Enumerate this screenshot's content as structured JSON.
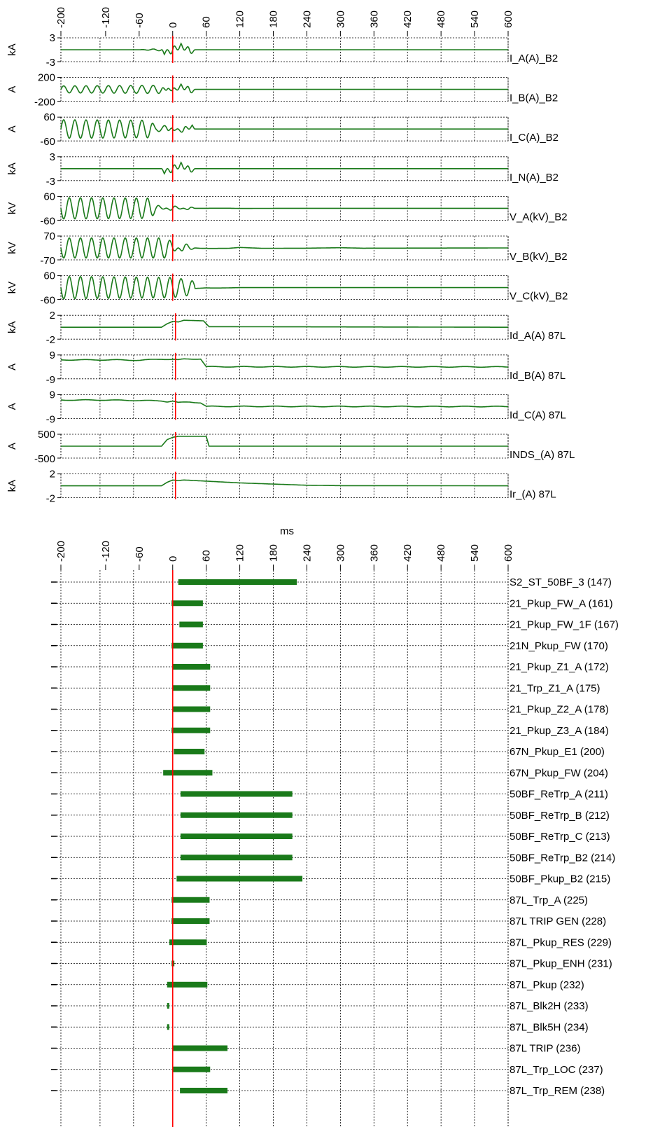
{
  "chart_data": [
    {
      "type": "line",
      "title": "",
      "xlabel": "ms",
      "xlim": [
        -200,
        600
      ],
      "x_ticks": [
        -200,
        -120,
        -60,
        0,
        60,
        120,
        180,
        240,
        300,
        360,
        420,
        480,
        540,
        600
      ],
      "trigger_ms": 0,
      "trigger_color": "#ff0000",
      "trace_color": "#1a7a1a",
      "series": [
        {
          "name": "I_A(A)_B2",
          "unit": "kA",
          "ylim": [
            -3,
            3
          ],
          "ytick_labels": [
            "3",
            "-3"
          ],
          "shape": [
            [
              -200,
              0
            ],
            [
              -60,
              0
            ],
            [
              -20,
              0.3
            ],
            [
              -15,
              -1.2
            ],
            [
              0,
              1.9
            ],
            [
              15,
              -1.6
            ],
            [
              30,
              1.6
            ],
            [
              40,
              0
            ],
            [
              600,
              0
            ]
          ],
          "ripple": 0.05
        },
        {
          "name": "I_B(A)_B2",
          "unit": "A",
          "ylim": [
            -200,
            200
          ],
          "ytick_labels": [
            "200",
            "-200"
          ],
          "shape": [
            [
              -200,
              60
            ],
            [
              -20,
              70
            ],
            [
              -10,
              -50
            ],
            [
              0,
              60
            ],
            [
              15,
              -90
            ],
            [
              30,
              100
            ],
            [
              40,
              0
            ],
            [
              600,
              0
            ]
          ],
          "ripple": 0
        },
        {
          "name": "I_C(A)_B2",
          "unit": "A",
          "ylim": [
            -60,
            60
          ],
          "ytick_labels": [
            "60",
            "-60"
          ],
          "shape": [
            [
              -200,
              48
            ],
            [
              -40,
              45
            ],
            [
              -30,
              10
            ],
            [
              -10,
              20
            ],
            [
              0,
              -15
            ],
            [
              20,
              25
            ],
            [
              35,
              -20
            ],
            [
              40,
              0
            ],
            [
              600,
              0
            ]
          ],
          "ripple": 0
        },
        {
          "name": "I_N(A)_B2",
          "unit": "kA",
          "ylim": [
            -3,
            3
          ],
          "ytick_labels": [
            "3",
            "-3"
          ],
          "shape": [
            [
              -200,
              0
            ],
            [
              -20,
              0
            ],
            [
              -15,
              -1.3
            ],
            [
              0,
              1.9
            ],
            [
              15,
              -1.6
            ],
            [
              30,
              1.5
            ],
            [
              40,
              0
            ],
            [
              600,
              0
            ]
          ],
          "ripple": 0
        },
        {
          "name": "V_A(kV)_B2",
          "unit": "kV",
          "ylim": [
            -60,
            60
          ],
          "ytick_labels": [
            "60",
            "-60"
          ],
          "shape": [
            [
              -200,
              -55
            ],
            [
              -40,
              -52
            ],
            [
              -30,
              -20
            ],
            [
              0,
              15
            ],
            [
              30,
              -10
            ],
            [
              40,
              0
            ],
            [
              100,
              3
            ],
            [
              120,
              -5
            ],
            [
              200,
              0
            ],
            [
              600,
              0
            ]
          ],
          "ripple": 0
        },
        {
          "name": "V_B(kV)_B2",
          "unit": "kV",
          "ylim": [
            -70,
            70
          ],
          "ytick_labels": [
            "70",
            "-70"
          ],
          "shape": [
            [
              -200,
              -60
            ],
            [
              -10,
              -60
            ],
            [
              20,
              30
            ],
            [
              50,
              -15
            ],
            [
              70,
              -20
            ],
            [
              100,
              -15
            ],
            [
              120,
              20
            ],
            [
              160,
              -15
            ],
            [
              240,
              -10
            ],
            [
              300,
              10
            ],
            [
              340,
              -10
            ],
            [
              600,
              0
            ]
          ],
          "ripple": 0
        },
        {
          "name": "V_C(kV)_B2",
          "unit": "kV",
          "ylim": [
            -60,
            60
          ],
          "ytick_labels": [
            "60",
            "-60"
          ],
          "shape": [
            [
              -200,
              -58
            ],
            [
              0,
              -52
            ],
            [
              30,
              -40
            ],
            [
              60,
              -10
            ],
            [
              70,
              -15
            ],
            [
              90,
              -13
            ],
            [
              120,
              0
            ],
            [
              200,
              0
            ],
            [
              600,
              0
            ]
          ],
          "ripple": 0
        },
        {
          "name": "Id_A(A) 87L",
          "unit": "kA",
          "ylim": [
            -2,
            2
          ],
          "ytick_labels": [
            "2",
            "-2"
          ],
          "shape": [
            [
              -200,
              0
            ],
            [
              -20,
              0
            ],
            [
              -10,
              0.6
            ],
            [
              0,
              1.0
            ],
            [
              10,
              0.9
            ],
            [
              20,
              1.2
            ],
            [
              55,
              1.1
            ],
            [
              65,
              0.1
            ],
            [
              600,
              0
            ]
          ],
          "ripple": 0
        },
        {
          "name": "Id_B(A) 87L",
          "unit": "A",
          "ylim": [
            -9,
            9
          ],
          "ytick_labels": [
            "9",
            "-9"
          ],
          "shape": [
            [
              -200,
              5.4
            ],
            [
              -100,
              5.4
            ],
            [
              -60,
              5.1
            ],
            [
              -20,
              6.0
            ],
            [
              0,
              5.8
            ],
            [
              10,
              5.4
            ],
            [
              20,
              6.0
            ],
            [
              50,
              6.2
            ],
            [
              60,
              0.1
            ],
            [
              600,
              0
            ]
          ],
          "ripple": 0.3
        },
        {
          "name": "Id_C(A) 87L",
          "unit": "A",
          "ylim": [
            -9,
            9
          ],
          "ytick_labels": [
            "9",
            "-9"
          ],
          "shape": [
            [
              -200,
              5.0
            ],
            [
              -120,
              5.0
            ],
            [
              -20,
              4.4
            ],
            [
              -10,
              3.7
            ],
            [
              0,
              4.2
            ],
            [
              10,
              3.0
            ],
            [
              20,
              3.3
            ],
            [
              30,
              3.5
            ],
            [
              50,
              2.9
            ],
            [
              60,
              0.1
            ],
            [
              600,
              0
            ]
          ],
          "ripple": 0.3
        },
        {
          "name": "INDS_(A) 87L",
          "unit": "A",
          "ylim": [
            -500,
            500
          ],
          "ytick_labels": [
            "500",
            "-500"
          ],
          "shape": [
            [
              -200,
              0
            ],
            [
              -20,
              0
            ],
            [
              -10,
              280
            ],
            [
              0,
              380
            ],
            [
              10,
              420
            ],
            [
              60,
              420
            ],
            [
              65,
              0
            ],
            [
              600,
              0
            ]
          ],
          "ripple": 0
        },
        {
          "name": "Ir_(A) 87L",
          "unit": "kA",
          "ylim": [
            -2,
            2
          ],
          "ytick_labels": [
            "2",
            "-2"
          ],
          "shape": [
            [
              -200,
              0
            ],
            [
              -20,
              0
            ],
            [
              -10,
              0.6
            ],
            [
              0,
              1.0
            ],
            [
              10,
              0.9
            ],
            [
              20,
              1.0
            ],
            [
              60,
              0.8
            ],
            [
              120,
              0.5
            ],
            [
              180,
              0.3
            ],
            [
              240,
              0.1
            ],
            [
              300,
              0.03
            ],
            [
              600,
              0
            ]
          ],
          "ripple": 0
        }
      ]
    },
    {
      "type": "timeline",
      "title": "",
      "xlim": [
        -200,
        600
      ],
      "x_ticks": [
        -200,
        -120,
        -60,
        0,
        60,
        120,
        180,
        240,
        300,
        360,
        420,
        480,
        540,
        600
      ],
      "trigger_ms": 0,
      "bar_color": "#1a7a1a",
      "trigger_color": "#ff0000",
      "signals": [
        {
          "name": "S2_ST_50BF_3 (147)",
          "start": 10,
          "end": 222
        },
        {
          "name": "21_Pkup_FW_A (161)",
          "start": -2,
          "end": 54
        },
        {
          "name": "21_Pkup_FW_1F (167)",
          "start": 12,
          "end": 54
        },
        {
          "name": "21N_Pkup_FW (170)",
          "start": -2,
          "end": 54
        },
        {
          "name": "21_Pkup_Z1_A (172)",
          "start": 0,
          "end": 67
        },
        {
          "name": "21_Trp_Z1_A (175)",
          "start": 0,
          "end": 67
        },
        {
          "name": "21_Pkup_Z2_A (178)",
          "start": 0,
          "end": 67
        },
        {
          "name": "21_Pkup_Z3_A (184)",
          "start": -2,
          "end": 67
        },
        {
          "name": "67N_Pkup_E1 (200)",
          "start": 2,
          "end": 57
        },
        {
          "name": "67N_Pkup_FW (204)",
          "start": -17,
          "end": 71
        },
        {
          "name": "50BF_ReTrp_A (211)",
          "start": 14,
          "end": 214
        },
        {
          "name": "50BF_ReTrp_B (212)",
          "start": 14,
          "end": 214
        },
        {
          "name": "50BF_ReTrp_C (213)",
          "start": 14,
          "end": 214
        },
        {
          "name": "50BF_ReTrp_B2 (214)",
          "start": 14,
          "end": 214
        },
        {
          "name": "50BF_Pkup_B2 (215)",
          "start": 7,
          "end": 232
        },
        {
          "name": "87L_Trp_A (225)",
          "start": -2,
          "end": 66
        },
        {
          "name": "87L TRIP GEN (228)",
          "start": -2,
          "end": 66
        },
        {
          "name": "87L_Pkup_RES (229)",
          "start": -6,
          "end": 61
        },
        {
          "name": "87L_Pkup_ENH (231)",
          "start": -2,
          "end": 3
        },
        {
          "name": "87L_Pkup (232)",
          "start": -10,
          "end": 62
        },
        {
          "name": "87L_Blk2H (233)",
          "start": -10,
          "end": -7
        },
        {
          "name": "87L_Blk5H (234)",
          "start": -10,
          "end": -7
        },
        {
          "name": "87L TRIP (236)",
          "start": 0,
          "end": 98
        },
        {
          "name": "87L_Trp_LOC (237)",
          "start": 0,
          "end": 67
        },
        {
          "name": "87L_Trp_REM (238)",
          "start": 13,
          "end": 98
        }
      ]
    }
  ]
}
